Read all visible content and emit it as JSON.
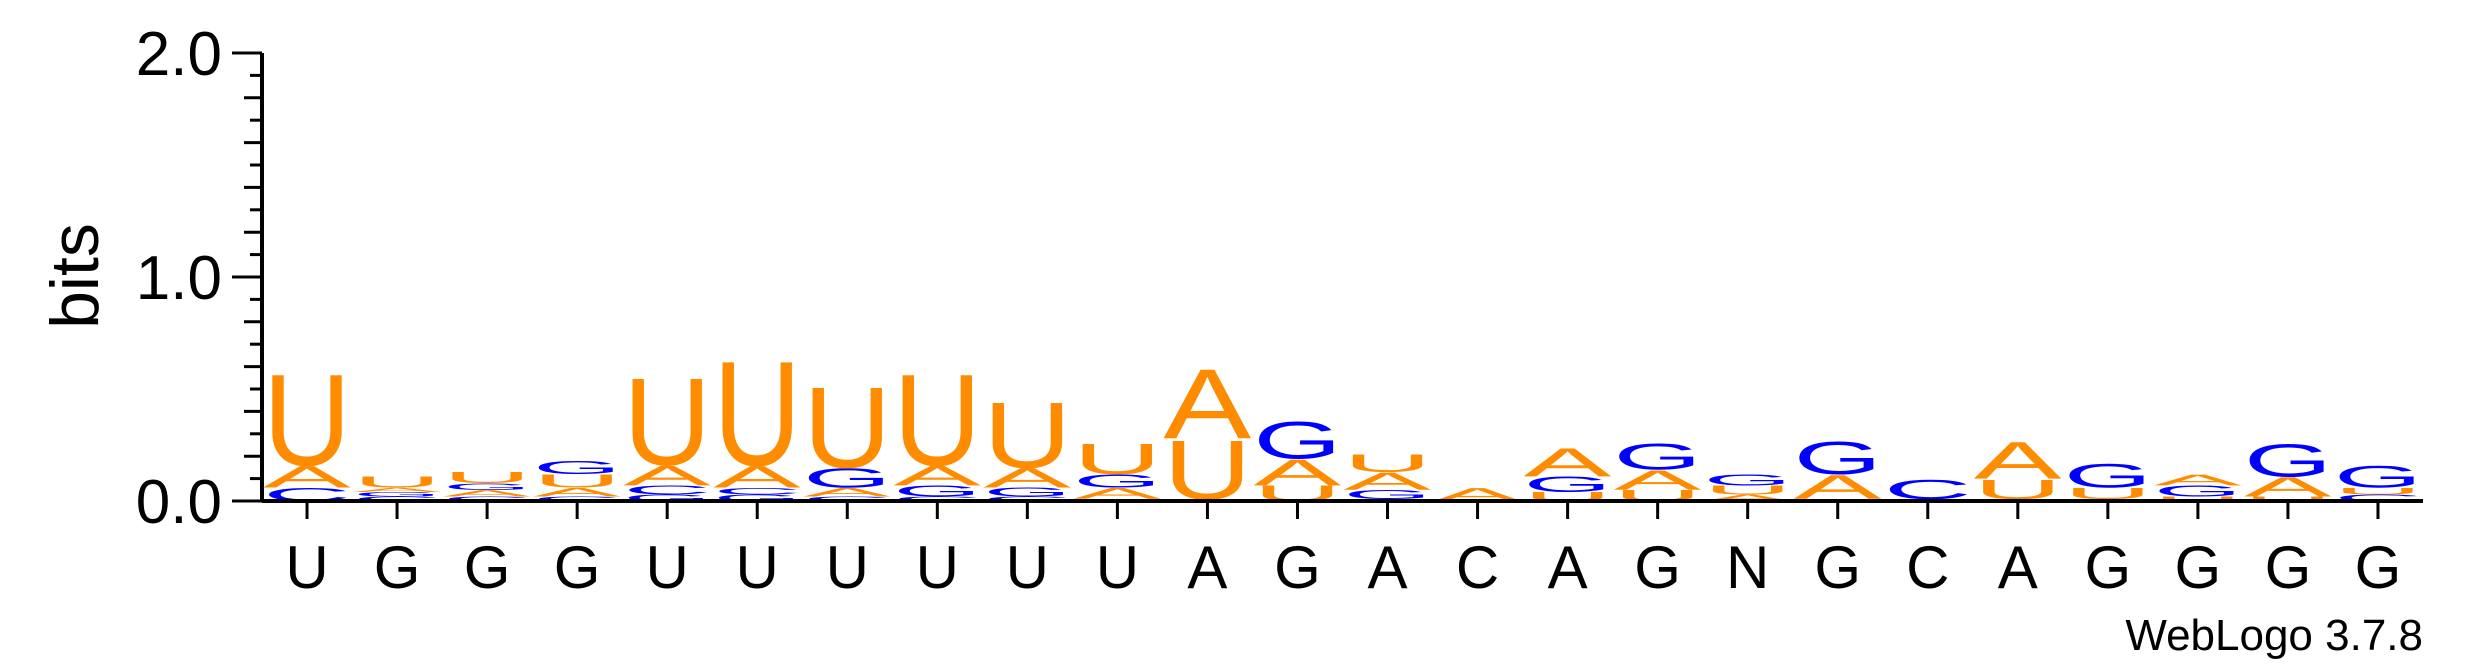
{
  "chart_data": {
    "type": "sequence-logo",
    "ylabel": "bits",
    "ylim": [
      0,
      2.0
    ],
    "y_ticks": [
      "0.0",
      "1.0",
      "2.0"
    ],
    "alphabet_colors": {
      "A": "#FF8C00",
      "U": "#FF8C00",
      "G": "#0000FF",
      "C": "#0000FF"
    },
    "consensus": [
      "U",
      "G",
      "G",
      "G",
      "U",
      "U",
      "U",
      "U",
      "U",
      "U",
      "A",
      "G",
      "A",
      "C",
      "A",
      "G",
      "N",
      "G",
      "C",
      "A",
      "G",
      "G",
      "G",
      "G"
    ],
    "positions": [
      {
        "label": "U",
        "stack": [
          {
            "b": "C",
            "h": 0.06
          },
          {
            "b": "A",
            "h": 0.1
          },
          {
            "b": "U",
            "h": 0.42
          }
        ]
      },
      {
        "label": "G",
        "stack": [
          {
            "b": "C",
            "h": 0.02
          },
          {
            "b": "G",
            "h": 0.02
          },
          {
            "b": "A",
            "h": 0.02
          },
          {
            "b": "U",
            "h": 0.05
          }
        ]
      },
      {
        "label": "G",
        "stack": [
          {
            "b": "C",
            "h": 0.02
          },
          {
            "b": "A",
            "h": 0.03
          },
          {
            "b": "G",
            "h": 0.03
          },
          {
            "b": "U",
            "h": 0.05
          }
        ]
      },
      {
        "label": "G",
        "stack": [
          {
            "b": "C",
            "h": 0.02
          },
          {
            "b": "A",
            "h": 0.04
          },
          {
            "b": "U",
            "h": 0.06
          },
          {
            "b": "G",
            "h": 0.06
          }
        ]
      },
      {
        "label": "U",
        "stack": [
          {
            "b": "G",
            "h": 0.03
          },
          {
            "b": "C",
            "h": 0.04
          },
          {
            "b": "A",
            "h": 0.09
          },
          {
            "b": "U",
            "h": 0.4
          }
        ]
      },
      {
        "label": "U",
        "stack": [
          {
            "b": "G",
            "h": 0.03
          },
          {
            "b": "C",
            "h": 0.03
          },
          {
            "b": "A",
            "h": 0.1
          },
          {
            "b": "U",
            "h": 0.48
          }
        ]
      },
      {
        "label": "U",
        "stack": [
          {
            "b": "C",
            "h": 0.02
          },
          {
            "b": "A",
            "h": 0.04
          },
          {
            "b": "G",
            "h": 0.09
          },
          {
            "b": "U",
            "h": 0.37
          }
        ]
      },
      {
        "label": "U",
        "stack": [
          {
            "b": "C",
            "h": 0.02
          },
          {
            "b": "G",
            "h": 0.05
          },
          {
            "b": "A",
            "h": 0.09
          },
          {
            "b": "U",
            "h": 0.42
          }
        ]
      },
      {
        "label": "U",
        "stack": [
          {
            "b": "C",
            "h": 0.02
          },
          {
            "b": "G",
            "h": 0.04
          },
          {
            "b": "A",
            "h": 0.09
          },
          {
            "b": "U",
            "h": 0.3
          }
        ]
      },
      {
        "label": "U",
        "stack": [
          {
            "b": "C",
            "h": 0.01
          },
          {
            "b": "A",
            "h": 0.05
          },
          {
            "b": "G",
            "h": 0.06
          },
          {
            "b": "U",
            "h": 0.14
          }
        ]
      },
      {
        "label": "A",
        "stack": [
          {
            "b": "G",
            "h": 0.01
          },
          {
            "b": "U",
            "h": 0.27
          },
          {
            "b": "A",
            "h": 0.32
          }
        ]
      },
      {
        "label": "G",
        "stack": [
          {
            "b": "U",
            "h": 0.07
          },
          {
            "b": "A",
            "h": 0.12
          },
          {
            "b": "G",
            "h": 0.17
          }
        ]
      },
      {
        "label": "A",
        "stack": [
          {
            "b": "C",
            "h": 0.01
          },
          {
            "b": "G",
            "h": 0.04
          },
          {
            "b": "A",
            "h": 0.08
          },
          {
            "b": "U",
            "h": 0.08
          }
        ]
      },
      {
        "label": "C",
        "stack": [
          {
            "b": "A",
            "h": 0.06
          }
        ]
      },
      {
        "label": "A",
        "stack": [
          {
            "b": "U",
            "h": 0.04
          },
          {
            "b": "G",
            "h": 0.07
          },
          {
            "b": "A",
            "h": 0.13
          }
        ]
      },
      {
        "label": "G",
        "stack": [
          {
            "b": "U",
            "h": 0.05
          },
          {
            "b": "A",
            "h": 0.09
          },
          {
            "b": "G",
            "h": 0.12
          }
        ]
      },
      {
        "label": "N",
        "stack": [
          {
            "b": "A",
            "h": 0.03
          },
          {
            "b": "U",
            "h": 0.04
          },
          {
            "b": "G",
            "h": 0.05
          }
        ]
      },
      {
        "label": "G",
        "stack": [
          {
            "b": "U",
            "h": 0.01
          },
          {
            "b": "A",
            "h": 0.11
          },
          {
            "b": "G",
            "h": 0.15
          }
        ]
      },
      {
        "label": "C",
        "stack": [
          {
            "b": "U",
            "h": 0.01
          },
          {
            "b": "C",
            "h": 0.09
          }
        ]
      },
      {
        "label": "A",
        "stack": [
          {
            "b": "G",
            "h": 0.01
          },
          {
            "b": "U",
            "h": 0.09
          },
          {
            "b": "A",
            "h": 0.17
          }
        ]
      },
      {
        "label": "G",
        "stack": [
          {
            "b": "A",
            "h": 0.01
          },
          {
            "b": "U",
            "h": 0.05
          },
          {
            "b": "G",
            "h": 0.11
          }
        ]
      },
      {
        "label": "G",
        "stack": [
          {
            "b": "U",
            "h": 0.02
          },
          {
            "b": "G",
            "h": 0.05
          },
          {
            "b": "A",
            "h": 0.05
          }
        ]
      },
      {
        "label": "G",
        "stack": [
          {
            "b": "U",
            "h": 0.02
          },
          {
            "b": "A",
            "h": 0.09
          },
          {
            "b": "G",
            "h": 0.15
          }
        ]
      },
      {
        "label": "G",
        "stack": [
          {
            "b": "C",
            "h": 0.03
          },
          {
            "b": "U",
            "h": 0.03
          },
          {
            "b": "G",
            "h": 0.1
          }
        ]
      }
    ]
  },
  "credit": "WebLogo 3.7.8"
}
